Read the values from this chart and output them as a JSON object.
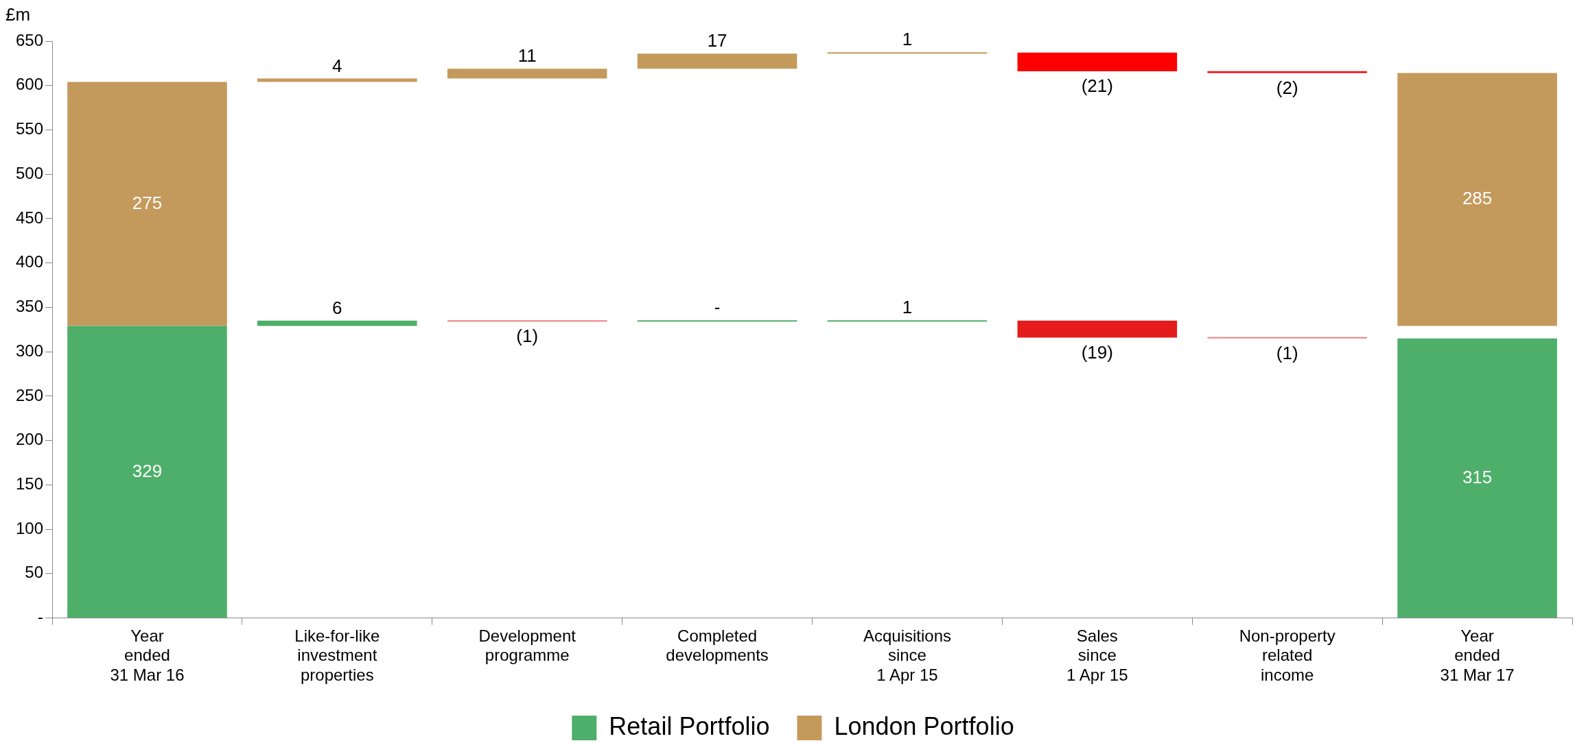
{
  "chart_data": {
    "type": "bar",
    "ylabel": "£m",
    "categories": [
      "Year\nended\n31 Mar 16",
      "Like-for-like\ninvestment\nproperties",
      "Development\nprogramme",
      "Completed\ndevelopments",
      "Acquisitions\nsince\n1 Apr 15",
      "Sales\nsince\n1 Apr 15",
      "Non-property\nrelated\nincome",
      "Year\nended\n31 Mar 17"
    ],
    "series": [
      {
        "name": "Retail Portfolio",
        "color": "#4daf69",
        "values": [
          329,
          6,
          -1,
          0,
          1,
          -19,
          -1,
          315
        ],
        "base": [
          0,
          329,
          335,
          334,
          334,
          335,
          316,
          0
        ],
        "colors": [
          "#4daf69",
          "#4daf69",
          "#f08080",
          "#4daf69",
          "#4daf69",
          "#e41c1c",
          "#f08080",
          "#4daf69"
        ],
        "value_labels": [
          "329",
          "6",
          "(1)",
          "-",
          "1",
          "(19)",
          "(1)",
          "315"
        ]
      },
      {
        "name": "London Portfolio",
        "color": "#c49a5c",
        "values": [
          275,
          4,
          11,
          17,
          1,
          -21,
          -2,
          285
        ],
        "base": [
          329,
          604,
          608,
          619,
          636,
          637,
          616,
          329
        ],
        "colors": [
          "#c49a5c",
          "#c49a5c",
          "#c49a5c",
          "#c49a5c",
          "#c49a5c",
          "#ff0000",
          "#ff0000",
          "#c49a5c"
        ],
        "value_labels": [
          "275",
          "4",
          "11",
          "17",
          "1",
          "(21)",
          "(2)",
          "285"
        ]
      }
    ],
    "ylim": [
      0,
      650
    ],
    "yticks": [
      {
        "value": 0,
        "label": "-"
      },
      50,
      100,
      150,
      200,
      250,
      300,
      350,
      400,
      450,
      500,
      550,
      600,
      650
    ],
    "grid": false,
    "legend": "bottom"
  }
}
